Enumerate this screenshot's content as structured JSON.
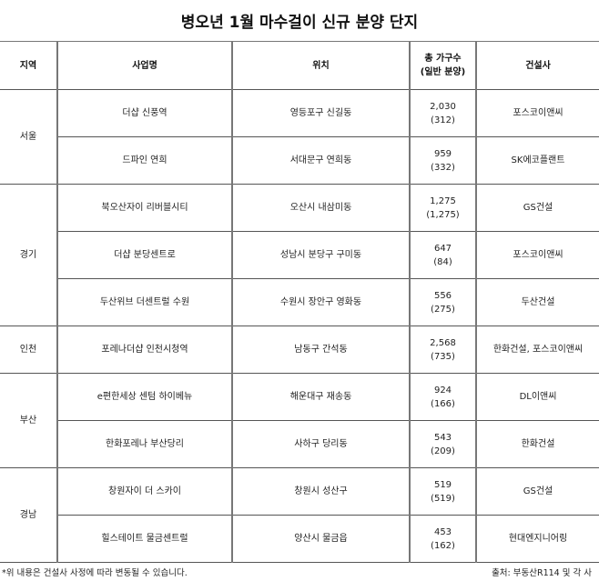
{
  "title": "병오년 1월 마수걸이 신규 분양 단지",
  "headers": [
    "지역",
    "사업명",
    "위치",
    "총 가구수",
    "(일반 분양)",
    "건설사"
  ],
  "regions": [
    {
      "name": "서울",
      "rows": [
        {
          "project": "더샵 신풍역",
          "location": "영등포구 신길동",
          "total": "2,030",
          "general": "(312)",
          "builder": "포스코이앤씨"
        },
        {
          "project": "드파인 연희",
          "location": "서대문구 연희동",
          "total": "959",
          "general": "(332)",
          "builder": "SK에코플랜트"
        }
      ]
    },
    {
      "name": "경기",
      "rows": [
        {
          "project": "북오산자이 리버블시티",
          "location": "오산시 내삼미동",
          "total": "1,275",
          "general": "(1,275)",
          "builder": "GS건설"
        },
        {
          "project": "더샵 분당센트로",
          "location": "성남시 분당구 구미동",
          "total": "647",
          "general": "(84)",
          "builder": "포스코이앤씨"
        },
        {
          "project": "두산위브 더센트럴 수원",
          "location": "수원시 장안구 영화동",
          "total": "556",
          "general": "(275)",
          "builder": "두산건설"
        }
      ]
    },
    {
      "name": "인천",
      "rows": [
        {
          "project": "포레나더샵 인천시청역",
          "location": "남동구 간석동",
          "total": "2,568",
          "general": "(735)",
          "builder": "한화건설, 포스코이앤씨"
        }
      ]
    },
    {
      "name": "부산",
      "rows": [
        {
          "project": "e편한세상 센텀 하이베뉴",
          "location": "해운대구 재송동",
          "total": "924",
          "general": "(166)",
          "builder": "DL이앤씨"
        },
        {
          "project": "한화포레나 부산당리",
          "location": "사하구 당리동",
          "total": "543",
          "general": "(209)",
          "builder": "한화건설"
        }
      ]
    },
    {
      "name": "경남",
      "rows": [
        {
          "project": "창원자이 더 스카이",
          "location": "창원시 성산구",
          "total": "519",
          "general": "(519)",
          "builder": "GS건설"
        },
        {
          "project": "힐스테이트 물금센트럴",
          "location": "양산시 물금읍",
          "total": "453",
          "general": "(162)",
          "builder": "현대엔지니어링"
        }
      ]
    }
  ],
  "footnote": "*위 내용은 건설사 사정에 따라 변동될 수 있습니다.",
  "source": "출처: 부동산R114 및 각 사"
}
